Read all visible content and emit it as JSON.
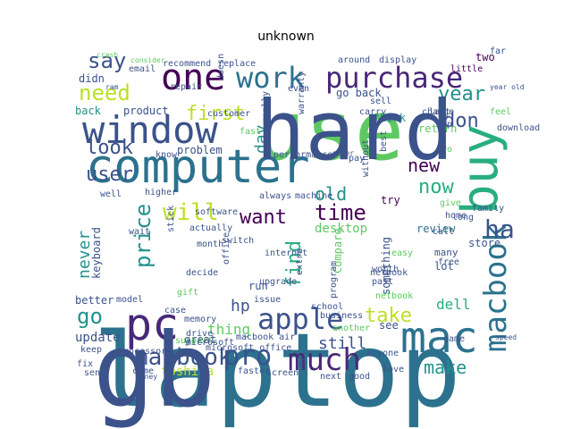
{
  "title": "unknown",
  "palette": {
    "navy": "#3b528b",
    "teal": "#21918c",
    "lime": "#5ec962",
    "yellow": "#bddf26",
    "purple": "#440154",
    "violet": "#482878",
    "cyan": "#2c728e",
    "green": "#28ae80"
  },
  "words": [
    {
      "text": "laptop",
      "color": "#2c728e"
    },
    {
      "text": "use",
      "color": "#5ec962"
    },
    {
      "text": "computer",
      "color": "#2c728e"
    },
    {
      "text": "window",
      "color": "#3b528b"
    },
    {
      "text": "pc",
      "color": "#482878"
    },
    {
      "text": "one",
      "color": "#440154"
    },
    {
      "text": "work",
      "color": "#2c728e"
    },
    {
      "text": "purchase",
      "color": "#482878"
    },
    {
      "text": "buy",
      "color": "#28ae80"
    },
    {
      "text": "mac",
      "color": "#2c728e"
    },
    {
      "text": "apple",
      "color": "#3b528b"
    },
    {
      "text": "much",
      "color": "#482878"
    },
    {
      "text": "macbook",
      "color": "#3b528b"
    },
    {
      "text": "macbook",
      "color": "#2c728e"
    },
    {
      "text": "pro",
      "color": "#3b528b"
    },
    {
      "text": "need",
      "color": "#bddf26"
    },
    {
      "text": "first",
      "color": "#bddf26"
    },
    {
      "text": "say",
      "color": "#3b528b"
    },
    {
      "text": "year",
      "color": "#21918c"
    },
    {
      "text": "don",
      "color": "#3b528b"
    },
    {
      "text": "look",
      "color": "#3b528b"
    },
    {
      "text": "user",
      "color": "#3b528b"
    },
    {
      "text": "will",
      "color": "#bddf26"
    },
    {
      "text": "want",
      "color": "#440154"
    },
    {
      "text": "time",
      "color": "#440154"
    },
    {
      "text": "old",
      "color": "#21918c"
    },
    {
      "text": "new",
      "color": "#440154"
    },
    {
      "text": "now",
      "color": "#28ae80"
    },
    {
      "text": "ha",
      "color": "#3b528b"
    },
    {
      "text": "price",
      "color": "#21918c"
    },
    {
      "text": "find",
      "color": "#28ae80"
    },
    {
      "text": "take",
      "color": "#bddf26"
    },
    {
      "text": "make",
      "color": "#21918c"
    },
    {
      "text": "go",
      "color": "#21918c"
    },
    {
      "text": "hp",
      "color": "#3b528b"
    },
    {
      "text": "thing",
      "color": "#5ec962"
    },
    {
      "text": "still",
      "color": "#3b528b"
    },
    {
      "text": "day",
      "color": "#21918c"
    },
    {
      "text": "never",
      "color": "#21918c"
    },
    {
      "text": "dell",
      "color": "#28ae80"
    },
    {
      "text": "toshiba",
      "color": "#bddf26"
    },
    {
      "text": "desktop",
      "color": "#5ec962"
    },
    {
      "text": "problem",
      "color": "#3b528b"
    },
    {
      "text": "product",
      "color": "#3b528b"
    },
    {
      "text": "back",
      "color": "#21918c"
    },
    {
      "text": "didn",
      "color": "#3b528b"
    },
    {
      "text": "go back",
      "color": "#3b528b"
    },
    {
      "text": "think",
      "color": "#21918c"
    },
    {
      "text": "try",
      "color": "#440154"
    },
    {
      "text": "review",
      "color": "#2c728e"
    },
    {
      "text": "update",
      "color": "#3b528b"
    },
    {
      "text": "keyboard",
      "color": "#3b528b"
    },
    {
      "text": "Compare",
      "color": "#5ec962"
    },
    {
      "text": "something",
      "color": "#3b528b"
    },
    {
      "text": "see",
      "color": "#3b528b"
    },
    {
      "text": "store",
      "color": "#3b528b"
    },
    {
      "text": "lot",
      "color": "#3b528b"
    },
    {
      "text": "many",
      "color": "#3b528b"
    },
    {
      "text": "run",
      "color": "#3b528b"
    },
    {
      "text": "issue",
      "color": "#3b528b"
    },
    {
      "text": "screen",
      "color": "#3b528b"
    },
    {
      "text": "great",
      "color": "#3b528b"
    },
    {
      "text": "microsoft office",
      "color": "#3b528b"
    },
    {
      "text": "better",
      "color": "#3b528b"
    },
    {
      "text": "model",
      "color": "#3b528b"
    },
    {
      "text": "recommend",
      "color": "#3b528b"
    },
    {
      "text": "replace",
      "color": "#3b528b"
    },
    {
      "text": "around",
      "color": "#3b528b"
    },
    {
      "text": "display",
      "color": "#3b528b"
    },
    {
      "text": "little",
      "color": "#440154"
    },
    {
      "text": "two",
      "color": "#440154"
    },
    {
      "text": "really",
      "color": "#3b528b"
    },
    {
      "text": "even",
      "color": "#3b528b"
    },
    {
      "text": "know",
      "color": "#3b528b"
    },
    {
      "text": "month",
      "color": "#3b528b"
    },
    {
      "text": "switch",
      "color": "#3b528b"
    },
    {
      "text": "internet",
      "color": "#3b528b"
    },
    {
      "text": "always",
      "color": "#3b528b"
    },
    {
      "text": "machine",
      "color": "#3b528b"
    },
    {
      "text": "well",
      "color": "#3b528b"
    },
    {
      "text": "higher",
      "color": "#3b528b"
    },
    {
      "text": "wait",
      "color": "#3b528b"
    },
    {
      "text": "decide",
      "color": "#3b528b"
    },
    {
      "text": "gift",
      "color": "#5ec962"
    },
    {
      "text": "upgrade",
      "color": "#3b528b"
    },
    {
      "text": "school",
      "color": "#3b528b"
    },
    {
      "text": "business",
      "color": "#3b528b"
    },
    {
      "text": "support",
      "color": "#5ec962"
    },
    {
      "text": "send",
      "color": "#3b528b"
    },
    {
      "text": "come",
      "color": "#3b528b"
    },
    {
      "text": "faster",
      "color": "#3b528b"
    },
    {
      "text": "next",
      "color": "#3b528b"
    },
    {
      "text": "love",
      "color": "#3b528b"
    },
    {
      "text": "free",
      "color": "#3b528b"
    },
    {
      "text": "game",
      "color": "#3b528b"
    },
    {
      "text": "past",
      "color": "#3b528b"
    },
    {
      "text": "worth",
      "color": "#3b528b"
    },
    {
      "text": "program",
      "color": "#3b528b"
    },
    {
      "text": "netbook",
      "color": "#5ec962"
    },
    {
      "text": "call",
      "color": "#3b528b"
    },
    {
      "text": "give",
      "color": "#5ec962"
    },
    {
      "text": "long",
      "color": "#3b528b"
    },
    {
      "text": "easy",
      "color": "#5ec962"
    },
    {
      "text": "change",
      "color": "#3b528b"
    },
    {
      "text": "return",
      "color": "#5ec962"
    },
    {
      "text": "pro",
      "color": "#5ec962"
    },
    {
      "text": "best",
      "color": "#3b528b"
    },
    {
      "text": "last",
      "color": "#3b528b"
    },
    {
      "text": "amp",
      "color": "#3b528b"
    },
    {
      "text": "feel",
      "color": "#5ec962"
    },
    {
      "text": "far",
      "color": "#3b528b"
    },
    {
      "text": "sell",
      "color": "#3b528b"
    },
    {
      "text": "carry",
      "color": "#3b528b"
    },
    {
      "text": "customer",
      "color": "#3b528b"
    },
    {
      "text": "repair",
      "color": "#3b528b"
    },
    {
      "text": "email",
      "color": "#3b528b"
    },
    {
      "text": "doesn",
      "color": "#3b528b"
    },
    {
      "text": "warranty",
      "color": "#3b528b"
    },
    {
      "text": "performance",
      "color": "#3b528b"
    },
    {
      "text": "without",
      "color": "#3b528b"
    },
    {
      "text": "actually",
      "color": "#3b528b"
    },
    {
      "text": "stick",
      "color": "#3b528b"
    },
    {
      "text": "case",
      "color": "#3b528b"
    },
    {
      "text": "memory",
      "color": "#3b528b"
    },
    {
      "text": "drive",
      "color": "#3b528b"
    },
    {
      "text": "keep",
      "color": "#3b528b"
    },
    {
      "text": "fix",
      "color": "#3b528b"
    },
    {
      "text": "money",
      "color": "#3b528b"
    },
    {
      "text": "good",
      "color": "#3b528b"
    },
    {
      "text": "way",
      "color": "#3b528b"
    },
    {
      "text": "extra",
      "color": "#3b528b"
    },
    {
      "text": "office",
      "color": "#3b528b"
    },
    {
      "text": "anyone",
      "color": "#3b528b"
    },
    {
      "text": "macbook air",
      "color": "#3b528b"
    },
    {
      "text": "software",
      "color": "#3b528b"
    },
    {
      "text": "microsoft",
      "color": "#3b528b"
    },
    {
      "text": "consider",
      "color": "#5ec962"
    },
    {
      "text": "fast",
      "color": "#5ec962"
    },
    {
      "text": "ram",
      "color": "#3b528b"
    },
    {
      "text": "crash",
      "color": "#5ec962"
    },
    {
      "text": "processor",
      "color": "#3b528b"
    },
    {
      "text": "speed",
      "color": "#3b528b"
    },
    {
      "text": "download",
      "color": "#3b528b"
    },
    {
      "text": "family",
      "color": "#3b528b"
    },
    {
      "text": "another",
      "color": "#5ec962"
    },
    {
      "text": "pay",
      "color": "#3b528b"
    },
    {
      "text": "home",
      "color": "#3b528b"
    },
    {
      "text": "power",
      "color": "#3b528b"
    },
    {
      "text": "netbook",
      "color": "#3b528b"
    },
    {
      "text": "year old",
      "color": "#3b528b"
    },
    {
      "text": "gb",
      "color": "#3b528b"
    },
    {
      "text": "hard",
      "color": "#3b528b"
    }
  ]
}
